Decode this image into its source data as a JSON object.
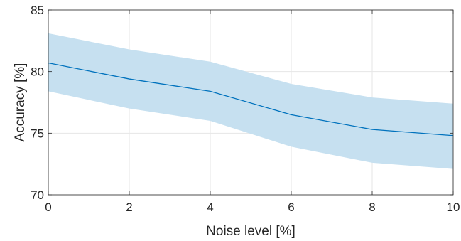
{
  "chart_data": {
    "type": "line",
    "title": "",
    "xlabel": "Noise level [%]",
    "ylabel": "Accuracy [%]",
    "xlim": [
      0,
      10
    ],
    "ylim": [
      70,
      85
    ],
    "x_ticks": [
      0,
      2,
      4,
      6,
      8,
      10
    ],
    "y_ticks": [
      70,
      75,
      80,
      85
    ],
    "x_tick_labels": [
      "0",
      "2",
      "4",
      "6",
      "8",
      "10"
    ],
    "y_tick_labels": [
      "70",
      "75",
      "80",
      "85"
    ],
    "grid": true,
    "legend": "none",
    "x": [
      0,
      2,
      4,
      6,
      8,
      10
    ],
    "series": [
      {
        "values": [
          80.7,
          79.4,
          78.4,
          76.5,
          75.3,
          74.8
        ],
        "lower": [
          78.4,
          77.0,
          76.0,
          73.9,
          72.6,
          72.1
        ],
        "upper": [
          83.1,
          81.8,
          80.8,
          79.0,
          77.9,
          77.4
        ],
        "color": "#0072BD",
        "band_color": "#C6E0F0"
      }
    ]
  }
}
